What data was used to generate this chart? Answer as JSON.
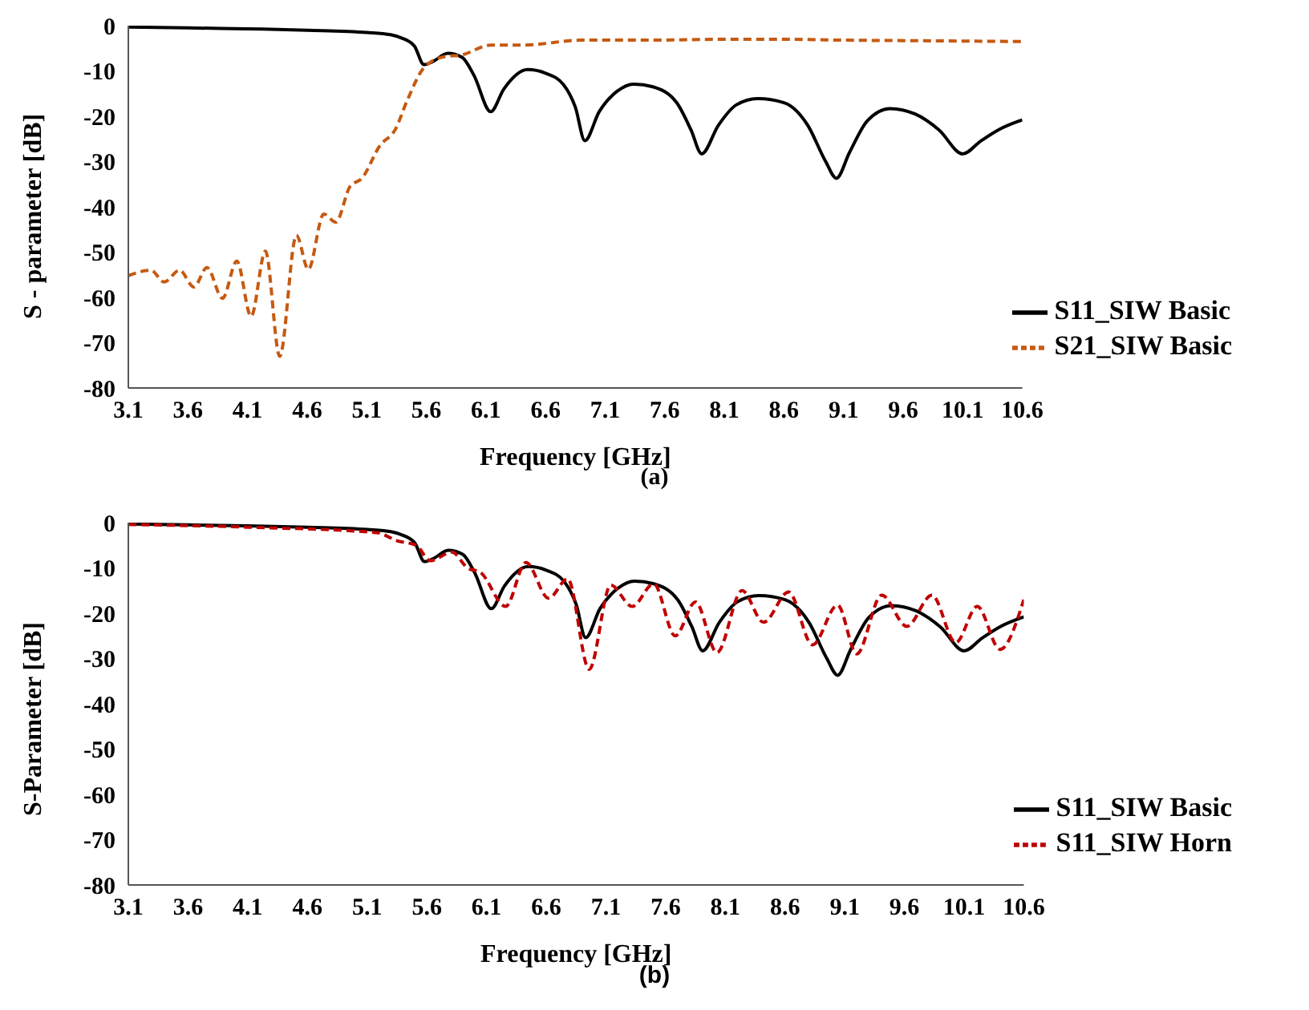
{
  "chart_data": [
    {
      "type": "line",
      "xlabel": "Frequency [GHz]",
      "ylabel": "S - parameter [dB]",
      "annotations": [
        "(a)"
      ],
      "xlim": [
        3.1,
        10.6
      ],
      "xticks": [
        3.1,
        3.6,
        4.1,
        4.6,
        5.1,
        5.6,
        6.1,
        6.6,
        7.1,
        7.6,
        8.1,
        8.6,
        9.1,
        9.6,
        10.1,
        10.6
      ],
      "ylim": [
        -80,
        0
      ],
      "yticks": [
        -80,
        -70,
        -60,
        -50,
        -40,
        -30,
        -20,
        -10,
        0
      ],
      "grid": false,
      "legend": "bottom right",
      "marker": "none",
      "series": [
        {
          "name": "S11_SIW Basic",
          "color": "#000000",
          "line_style": "solid",
          "x": [
            3.1,
            3.6,
            4.1,
            4.6,
            5.1,
            5.3,
            5.4,
            5.5,
            5.58,
            5.65,
            5.78,
            5.9,
            6.0,
            6.14,
            6.25,
            6.45,
            6.6,
            6.75,
            6.85,
            6.93,
            7.05,
            7.2,
            7.34,
            7.5,
            7.7,
            7.82,
            7.91,
            8.05,
            8.2,
            8.38,
            8.6,
            8.8,
            8.95,
            9.04,
            9.15,
            9.3,
            9.49,
            9.7,
            9.9,
            10.1,
            10.25,
            10.4,
            10.6
          ],
          "values": [
            -0.3,
            -0.5,
            -0.7,
            -1,
            -1.5,
            -2,
            -2.8,
            -4.5,
            -8.6,
            -8,
            -6.1,
            -7,
            -11,
            -19,
            -14,
            -9.7,
            -10.5,
            -13,
            -18,
            -25.4,
            -19,
            -14.5,
            -12.9,
            -13.5,
            -17,
            -23,
            -28.3,
            -22,
            -17.5,
            -16.1,
            -17,
            -22,
            -30,
            -33.7,
            -28,
            -21,
            -18.3,
            -19.5,
            -23,
            -28.3,
            -25.5,
            -23,
            -20.8
          ]
        },
        {
          "name": "S21_SIW Basic",
          "color": "#c55a11",
          "line_style": "dashed",
          "x": [
            3.1,
            3.29,
            3.4,
            3.53,
            3.65,
            3.76,
            3.89,
            4.01,
            4.13,
            4.25,
            4.37,
            4.51,
            4.61,
            4.74,
            4.84,
            4.96,
            5.06,
            5.21,
            5.34,
            5.44,
            5.58,
            5.76,
            5.89,
            6.14,
            6.41,
            6.9,
            7.5,
            8.1,
            8.6,
            9.1,
            9.6,
            10.1,
            10.6
          ],
          "values": [
            -55.2,
            -54,
            -56.6,
            -54,
            -57.7,
            -53.4,
            -60.2,
            -52,
            -64.2,
            -49.8,
            -73,
            -46.3,
            -53.8,
            -41.6,
            -43.4,
            -35.5,
            -33.7,
            -26.5,
            -22.9,
            -16.5,
            -9.3,
            -6.8,
            -6.5,
            -4.3,
            -4.3,
            -3.2,
            -3.2,
            -3,
            -3,
            -3.2,
            -3.3,
            -3.4,
            -3.5
          ]
        }
      ]
    },
    {
      "type": "line",
      "xlabel": "Frequency [GHz]",
      "ylabel": "S-Parameter [dB]",
      "annotations": [
        "(b)"
      ],
      "xlim": [
        3.1,
        10.6
      ],
      "xticks": [
        3.1,
        3.6,
        4.1,
        4.6,
        5.1,
        5.6,
        6.1,
        6.6,
        7.1,
        7.6,
        8.1,
        8.6,
        9.1,
        9.6,
        10.1,
        10.6
      ],
      "ylim": [
        -80,
        0
      ],
      "yticks": [
        -80,
        -70,
        -60,
        -50,
        -40,
        -30,
        -20,
        -10,
        0
      ],
      "grid": false,
      "legend": "bottom right",
      "marker": "none",
      "series": [
        {
          "name": "S11_SIW Basic",
          "color": "#000000",
          "line_style": "solid",
          "x": [
            3.1,
            3.6,
            4.1,
            4.6,
            5.1,
            5.3,
            5.4,
            5.5,
            5.58,
            5.65,
            5.78,
            5.9,
            6.0,
            6.14,
            6.25,
            6.45,
            6.6,
            6.75,
            6.85,
            6.93,
            7.05,
            7.2,
            7.34,
            7.5,
            7.7,
            7.82,
            7.91,
            8.05,
            8.2,
            8.38,
            8.6,
            8.8,
            8.95,
            9.04,
            9.15,
            9.3,
            9.49,
            9.7,
            9.9,
            10.1,
            10.25,
            10.4,
            10.6
          ],
          "values": [
            -0.3,
            -0.5,
            -0.7,
            -1,
            -1.5,
            -2,
            -2.8,
            -4.5,
            -8.6,
            -8,
            -6.1,
            -7,
            -11,
            -19,
            -14,
            -9.7,
            -10.5,
            -13,
            -18,
            -25.4,
            -19,
            -14.5,
            -12.9,
            -13.5,
            -17,
            -23,
            -28.3,
            -22,
            -17.5,
            -16.1,
            -17,
            -22,
            -30,
            -33.7,
            -28,
            -21,
            -18.3,
            -19.5,
            -23,
            -28.3,
            -25.5,
            -23,
            -20.8
          ]
        },
        {
          "name": "S11_SIW Horn",
          "color": "#c00000",
          "line_style": "dashed",
          "x": [
            3.1,
            4.1,
            5.18,
            5.35,
            5.51,
            5.63,
            5.81,
            5.94,
            6.05,
            6.26,
            6.43,
            6.62,
            6.78,
            6.96,
            7.14,
            7.32,
            7.5,
            7.68,
            7.85,
            8.03,
            8.24,
            8.42,
            8.63,
            8.83,
            9.04,
            9.2,
            9.41,
            9.62,
            9.83,
            10.03,
            10.21,
            10.4,
            10.6
          ],
          "values": [
            -0.4,
            -1,
            -2.2,
            -4,
            -5,
            -8.4,
            -6.5,
            -10,
            -11,
            -18.5,
            -8.8,
            -16.7,
            -12.4,
            -32.4,
            -13.8,
            -18.5,
            -13.5,
            -25,
            -17.5,
            -28.7,
            -15,
            -22,
            -15.3,
            -27,
            -18.2,
            -29,
            -16,
            -22.9,
            -16,
            -26.5,
            -18.5,
            -28,
            -17
          ]
        }
      ]
    }
  ]
}
